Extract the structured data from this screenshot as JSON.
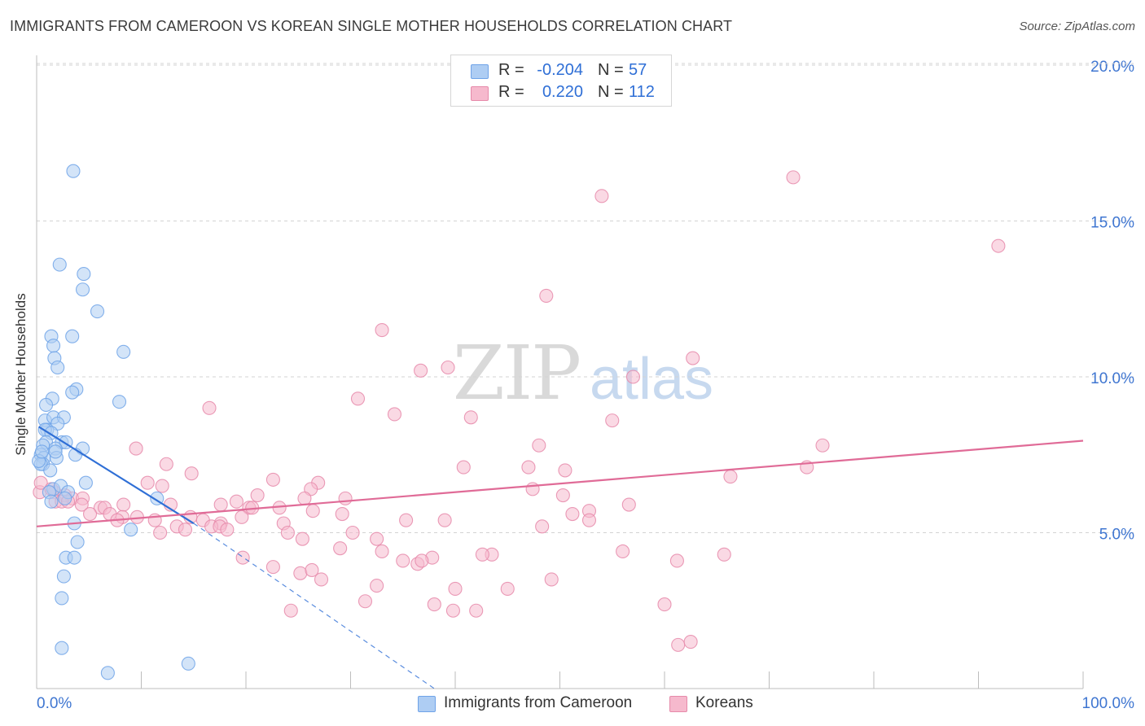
{
  "title": "IMMIGRANTS FROM CAMEROON VS KOREAN SINGLE MOTHER HOUSEHOLDS CORRELATION CHART",
  "source": "Source: ZipAtlas.com",
  "watermark": {
    "zip": "ZIP",
    "atlas": "atlas"
  },
  "legend": {
    "rows": [
      {
        "r_label": "R =",
        "r_value": "-0.204",
        "n_label": "N =",
        "n_value": "57",
        "color": "#aecdf3"
      },
      {
        "r_label": "R =",
        "r_value": "0.220",
        "n_label": "N =",
        "n_value": "112",
        "color": "#f6b9cd"
      }
    ]
  },
  "bottom_legend": [
    {
      "label": "Immigrants from Cameroon",
      "color": "#aecdf3"
    },
    {
      "label": "Koreans",
      "color": "#f6b9cd"
    }
  ],
  "chart_data": {
    "type": "scatter",
    "title": "IMMIGRANTS FROM CAMEROON VS KOREAN SINGLE MOTHER HOUSEHOLDS CORRELATION CHART",
    "xlabel": "",
    "ylabel": "Single Mother Households",
    "xlim": [
      0,
      100
    ],
    "ylim": [
      0,
      20.5
    ],
    "x_tick_labels": [
      "0.0%",
      "100.0%"
    ],
    "y_ticks": [
      5,
      10,
      15,
      20
    ],
    "y_tick_labels": [
      "5.0%",
      "10.0%",
      "15.0%",
      "20.0%"
    ],
    "grid": true,
    "series": [
      {
        "name": "Immigrants from Cameroon",
        "color": "#6fa3e8",
        "fill": "#aecdf3",
        "line_color": "#2f6fd6",
        "trend": {
          "x0": 0.2,
          "y0": 8.4,
          "x1": 15.0,
          "y1": 5.3,
          "dash_to_x": 38.0,
          "dash_to_y": 0.0
        },
        "points": [
          [
            3.5,
            16.6
          ],
          [
            2.2,
            13.6
          ],
          [
            4.5,
            13.3
          ],
          [
            4.4,
            12.8
          ],
          [
            5.8,
            12.1
          ],
          [
            1.4,
            11.3
          ],
          [
            3.4,
            11.3
          ],
          [
            1.6,
            11.0
          ],
          [
            1.7,
            10.6
          ],
          [
            8.3,
            10.8
          ],
          [
            2.0,
            10.3
          ],
          [
            3.8,
            9.6
          ],
          [
            3.4,
            9.5
          ],
          [
            1.5,
            9.3
          ],
          [
            0.9,
            9.1
          ],
          [
            7.9,
            9.2
          ],
          [
            0.8,
            8.6
          ],
          [
            1.6,
            8.7
          ],
          [
            2.6,
            8.7
          ],
          [
            2.0,
            8.5
          ],
          [
            1.0,
            8.3
          ],
          [
            0.8,
            8.3
          ],
          [
            1.4,
            8.2
          ],
          [
            0.9,
            7.9
          ],
          [
            2.4,
            7.9
          ],
          [
            0.6,
            7.8
          ],
          [
            2.8,
            7.9
          ],
          [
            1.8,
            7.7
          ],
          [
            4.4,
            7.7
          ],
          [
            3.7,
            7.5
          ],
          [
            0.4,
            7.5
          ],
          [
            0.7,
            7.4
          ],
          [
            1.9,
            7.4
          ],
          [
            0.6,
            7.2
          ],
          [
            0.4,
            7.2
          ],
          [
            1.3,
            7.0
          ],
          [
            0.2,
            7.3
          ],
          [
            4.7,
            6.6
          ],
          [
            1.6,
            6.4
          ],
          [
            2.3,
            6.5
          ],
          [
            1.2,
            6.3
          ],
          [
            3.0,
            6.3
          ],
          [
            2.7,
            6.1
          ],
          [
            1.4,
            6.0
          ],
          [
            11.5,
            6.1
          ],
          [
            3.6,
            5.3
          ],
          [
            9.0,
            5.1
          ],
          [
            3.9,
            4.7
          ],
          [
            2.8,
            4.2
          ],
          [
            3.6,
            4.2
          ],
          [
            2.6,
            3.6
          ],
          [
            2.4,
            2.9
          ],
          [
            2.4,
            1.3
          ],
          [
            6.8,
            0.5
          ],
          [
            14.5,
            0.8
          ],
          [
            1.8,
            7.6
          ],
          [
            0.5,
            7.6
          ]
        ]
      },
      {
        "name": "Koreans",
        "color": "#e68aaa",
        "fill": "#f6b9cd",
        "line_color": "#e06b97",
        "trend": {
          "x0": 0.0,
          "y0": 5.2,
          "x1": 100.0,
          "y1": 7.95
        },
        "points": [
          [
            72.3,
            16.4
          ],
          [
            54.0,
            15.8
          ],
          [
            91.9,
            14.2
          ],
          [
            48.7,
            12.6
          ],
          [
            33.0,
            11.5
          ],
          [
            62.7,
            10.6
          ],
          [
            36.7,
            10.2
          ],
          [
            39.3,
            10.3
          ],
          [
            57.0,
            10.0
          ],
          [
            30.7,
            9.3
          ],
          [
            16.5,
            9.0
          ],
          [
            34.2,
            8.8
          ],
          [
            41.5,
            8.7
          ],
          [
            55.0,
            8.6
          ],
          [
            48.0,
            7.8
          ],
          [
            75.1,
            7.8
          ],
          [
            9.5,
            7.7
          ],
          [
            12.4,
            7.2
          ],
          [
            40.8,
            7.1
          ],
          [
            47.0,
            7.1
          ],
          [
            73.6,
            7.1
          ],
          [
            50.5,
            7.0
          ],
          [
            14.8,
            6.9
          ],
          [
            66.3,
            6.8
          ],
          [
            22.6,
            6.7
          ],
          [
            10.6,
            6.6
          ],
          [
            12.0,
            6.5
          ],
          [
            26.9,
            6.6
          ],
          [
            26.2,
            6.4
          ],
          [
            47.4,
            6.4
          ],
          [
            0.3,
            6.3
          ],
          [
            1.7,
            6.3
          ],
          [
            0.4,
            6.6
          ],
          [
            1.4,
            6.4
          ],
          [
            2.7,
            6.2
          ],
          [
            3.4,
            6.1
          ],
          [
            4.4,
            6.1
          ],
          [
            1.8,
            6.0
          ],
          [
            2.4,
            6.0
          ],
          [
            4.3,
            5.9
          ],
          [
            6.1,
            5.8
          ],
          [
            8.3,
            5.9
          ],
          [
            6.5,
            5.8
          ],
          [
            12.8,
            5.9
          ],
          [
            17.6,
            5.9
          ],
          [
            19.1,
            6.0
          ],
          [
            20.3,
            5.8
          ],
          [
            21.1,
            6.2
          ],
          [
            25.6,
            6.1
          ],
          [
            29.5,
            6.1
          ],
          [
            50.3,
            6.2
          ],
          [
            56.6,
            5.9
          ],
          [
            52.8,
            5.7
          ],
          [
            51.2,
            5.6
          ],
          [
            20.6,
            5.8
          ],
          [
            23.2,
            5.8
          ],
          [
            26.4,
            5.7
          ],
          [
            29.2,
            5.6
          ],
          [
            5.1,
            5.6
          ],
          [
            7.0,
            5.6
          ],
          [
            8.2,
            5.5
          ],
          [
            9.6,
            5.5
          ],
          [
            11.3,
            5.4
          ],
          [
            14.7,
            5.5
          ],
          [
            15.9,
            5.4
          ],
          [
            17.6,
            5.3
          ],
          [
            19.6,
            5.5
          ],
          [
            23.6,
            5.3
          ],
          [
            35.3,
            5.4
          ],
          [
            39.0,
            5.4
          ],
          [
            48.3,
            5.2
          ],
          [
            52.8,
            5.4
          ],
          [
            13.4,
            5.2
          ],
          [
            14.2,
            5.1
          ],
          [
            16.7,
            5.2
          ],
          [
            17.5,
            5.2
          ],
          [
            24.0,
            5.0
          ],
          [
            30.2,
            5.0
          ],
          [
            32.5,
            4.8
          ],
          [
            25.4,
            4.8
          ],
          [
            29.0,
            4.5
          ],
          [
            33.0,
            4.4
          ],
          [
            37.8,
            4.2
          ],
          [
            43.5,
            4.3
          ],
          [
            36.4,
            4.0
          ],
          [
            56.0,
            4.4
          ],
          [
            65.7,
            4.3
          ],
          [
            61.2,
            4.1
          ],
          [
            19.7,
            4.2
          ],
          [
            22.6,
            3.9
          ],
          [
            25.2,
            3.7
          ],
          [
            26.3,
            3.8
          ],
          [
            27.2,
            3.5
          ],
          [
            32.5,
            3.3
          ],
          [
            40.0,
            3.2
          ],
          [
            45.0,
            3.2
          ],
          [
            49.2,
            3.5
          ],
          [
            31.4,
            2.8
          ],
          [
            38.0,
            2.7
          ],
          [
            39.8,
            2.5
          ],
          [
            42.0,
            2.5
          ],
          [
            60.0,
            2.7
          ],
          [
            24.3,
            2.5
          ],
          [
            35.0,
            4.1
          ],
          [
            11.8,
            5.0
          ],
          [
            61.3,
            1.4
          ],
          [
            62.5,
            1.5
          ],
          [
            3.0,
            6.0
          ],
          [
            36.8,
            4.1
          ],
          [
            42.6,
            4.3
          ],
          [
            18.2,
            5.1
          ],
          [
            7.7,
            5.4
          ]
        ]
      }
    ]
  }
}
